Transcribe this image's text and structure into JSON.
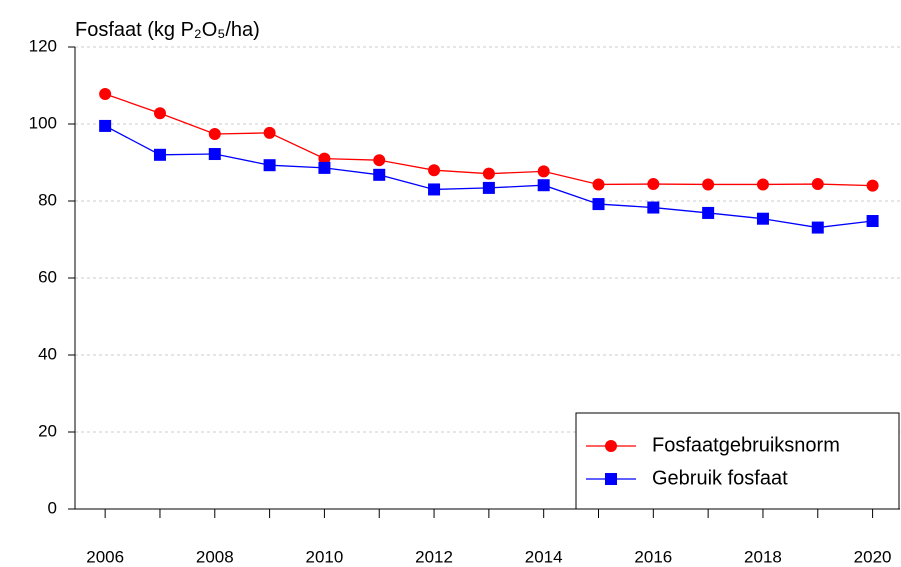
{
  "chart_data": {
    "type": "line",
    "title": "Fosfaat (kg P₂O₅/ha)",
    "x": [
      2006,
      2007,
      2008,
      2009,
      2010,
      2011,
      2012,
      2013,
      2014,
      2015,
      2016,
      2017,
      2018,
      2019,
      2020
    ],
    "series": [
      {
        "name": "Fosfaatgebruiksnorm",
        "color": "#ff0000",
        "marker": "circle",
        "values": [
          107.8,
          102.8,
          97.4,
          97.7,
          91.0,
          90.6,
          88.0,
          87.1,
          87.7,
          84.3,
          84.4,
          84.3,
          84.3,
          84.4,
          84.0
        ]
      },
      {
        "name": "Gebruik fosfaat",
        "color": "#0000ff",
        "marker": "square",
        "values": [
          99.5,
          92.0,
          92.2,
          89.3,
          88.6,
          86.8,
          83.0,
          83.4,
          84.1,
          79.2,
          78.3,
          76.9,
          75.4,
          73.1,
          74.8
        ]
      }
    ],
    "xlim": [
      2005.45,
      2020.5
    ],
    "xticks": [
      2006,
      2008,
      2010,
      2012,
      2014,
      2016,
      2018,
      2020
    ],
    "xminor_ticks": [
      2007,
      2009,
      2011,
      2013,
      2015,
      2017,
      2019
    ],
    "ylim": [
      0,
      120
    ],
    "yticks": [
      0,
      20,
      40,
      60,
      80,
      100,
      120
    ],
    "grid": true,
    "legend": "lower right"
  }
}
